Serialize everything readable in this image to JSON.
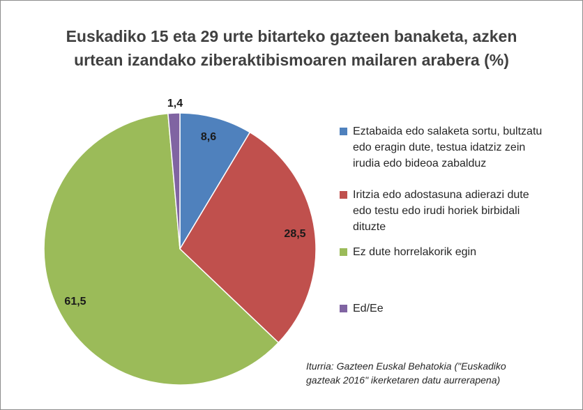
{
  "chart_data": {
    "type": "pie",
    "title": [
      "Euskadiko 15 eta 29 urte bitarteko gazteen banaketa, azken",
      "urtean izandako ziberaktibismoaren mailaren arabera (%)"
    ],
    "slices": [
      {
        "label": "Eztabaida edo salaketa sortu, bultzatu edo eragin dute, testua idatziz zein irudia edo bideoa zabalduz",
        "legend_lines": [
          "Eztabaida edo salaketa sortu, bultzatu",
          "edo eragin dute, testua idatziz zein",
          "irudia edo bideoa zabalduz"
        ],
        "value": 8.6,
        "value_label": "8,6",
        "color": "#4f81bd"
      },
      {
        "label": "Iritzia edo adostasuna adierazi dute edo testu edo irudi horiek birbidali dituzte",
        "legend_lines": [
          "Iritzia edo adostasuna adierazi dute",
          "edo testu edo irudi horiek birbidali",
          "dituzte"
        ],
        "value": 28.5,
        "value_label": "28,5",
        "color": "#c0504d"
      },
      {
        "label": "Ez dute horrelakorik egin",
        "legend_lines": [
          "Ez dute horrelakorik egin"
        ],
        "value": 61.5,
        "value_label": "61,5",
        "color": "#9bbb59"
      },
      {
        "label": "Ed/Ee",
        "legend_lines": [
          "Ed/Ee"
        ],
        "value": 1.4,
        "value_label": "1,4",
        "color": "#8064a2"
      }
    ],
    "legend_position": "right",
    "source": [
      "Iturria: Gazteen Euskal Behatokia (\"Euskadiko",
      "gazteak 2016\" ikerketaren datu aurrerapena)"
    ]
  }
}
